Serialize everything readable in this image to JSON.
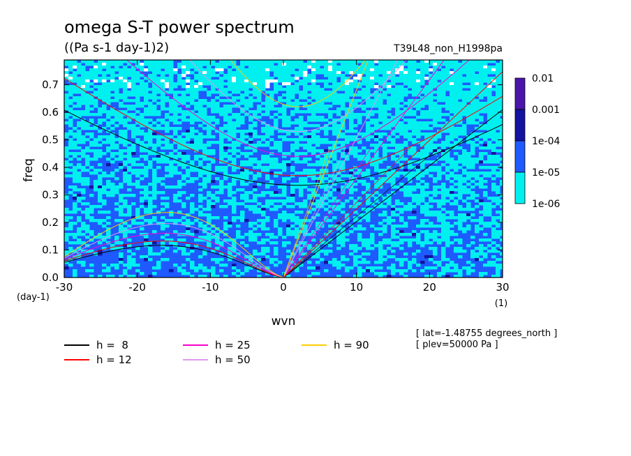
{
  "header": {
    "title": "omega S-T power spectrum",
    "units": "((Pa s-1 day-1)2)",
    "run_id": "T39L48_non_H1998pa"
  },
  "info": {
    "lat": "[ lat=-1.48755 degrees_north ]",
    "plev": "[ plev=50000 Pa ]"
  },
  "chart_data": {
    "type": "heatmap",
    "xlabel": "wvn",
    "ylabel": "freq",
    "x_unit_label": "(1)",
    "y_unit_label": "(day-1)",
    "xlim": [
      -30,
      30
    ],
    "ylim": [
      0,
      0.79
    ],
    "xticks": [
      {
        "v": -30,
        "label": "-30"
      },
      {
        "v": -20,
        "label": "-20"
      },
      {
        "v": -10,
        "label": "-10"
      },
      {
        "v": 0,
        "label": "0"
      },
      {
        "v": 10,
        "label": "10"
      },
      {
        "v": 20,
        "label": "20"
      },
      {
        "v": 30,
        "label": "30"
      }
    ],
    "yticks": [
      {
        "v": 0,
        "label": "0.0"
      },
      {
        "v": 0.1,
        "label": "0.1"
      },
      {
        "v": 0.2,
        "label": "0.2"
      },
      {
        "v": 0.3,
        "label": "0.3"
      },
      {
        "v": 0.4,
        "label": "0.4"
      },
      {
        "v": 0.5,
        "label": "0.5"
      },
      {
        "v": 0.6,
        "label": "0.6"
      },
      {
        "v": 0.7,
        "label": "0.7"
      }
    ],
    "colorbar": {
      "levels": [
        "0.01",
        "0.001",
        "1e-04",
        "1e-05",
        "1e-06"
      ],
      "bands": [
        {
          "range": "1e-03 to 1e-02",
          "color": "#4b14aa"
        },
        {
          "range": "1e-04 to 1e-03",
          "color": "#1414a0"
        },
        {
          "range": "1e-05 to 1e-04",
          "color": "#1e5aff"
        },
        {
          "range": "1e-06 to 1e-05",
          "color": "#00f0f0"
        }
      ]
    },
    "field_description": {
      "dominant_band": "1e-05 to 1e-04",
      "upper_region_band": "1e-06 to 1e-05",
      "white_below": "1e-06"
    },
    "dispersion_curves": [
      {
        "h": 8,
        "label": "h =  8",
        "color": "#000000",
        "kelvin_cross_x_at_freq_0_79": 38.9,
        "eig_min_freq": 0.335,
        "mrg_left_freq_at_x_neg30": 0.055
      },
      {
        "h": 12,
        "label": "h = 12",
        "color": "#ff0000",
        "kelvin_cross_x_at_freq_0_79": 31.7,
        "eig_min_freq": 0.37,
        "mrg_left_freq_at_x_neg30": 0.06
      },
      {
        "h": 25,
        "label": "h = 25",
        "color": "#ff00cc",
        "kelvin_cross_x_at_freq_0_79": 22.0,
        "eig_min_freq": 0.44,
        "mrg_left_freq_at_x_neg30": 0.065
      },
      {
        "h": 50,
        "label": "h = 50",
        "color": "#dd99ee",
        "kelvin_cross_x_at_freq_0_79": 15.6,
        "eig_min_freq": 0.53,
        "mrg_left_freq_at_x_neg30": 0.07
      },
      {
        "h": 90,
        "label": "h = 90",
        "color": "#ffcc00",
        "kelvin_cross_x_at_freq_0_79": 11.6,
        "eig_min_freq": 0.62,
        "mrg_left_freq_at_x_neg30": 0.075
      }
    ],
    "legend_position": "bottom"
  }
}
